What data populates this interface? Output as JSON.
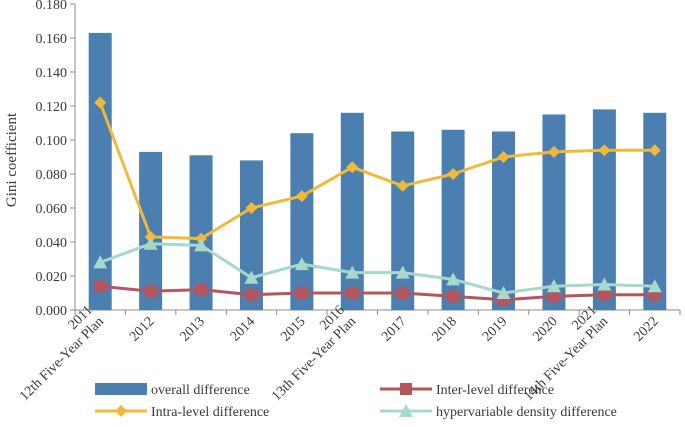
{
  "chart_data": {
    "type": "bar+line",
    "title": "",
    "xlabel": "",
    "ylabel": "Gini coefficient",
    "ylim": [
      0,
      0.18
    ],
    "yticks": [
      "0.000",
      "0.020",
      "0.040",
      "0.060",
      "0.080",
      "0.100",
      "0.120",
      "0.140",
      "0.160",
      "0.180"
    ],
    "categories": [
      [
        "2011",
        "12th Five-Year Plan"
      ],
      [
        "2012"
      ],
      [
        "2013"
      ],
      [
        "2014"
      ],
      [
        "2015"
      ],
      [
        "2016",
        "13th Five-Year Plan"
      ],
      [
        "2017"
      ],
      [
        "2018"
      ],
      [
        "2019"
      ],
      [
        "2020"
      ],
      [
        "2021",
        "14th Five-Year Plan"
      ],
      [
        "2022"
      ]
    ],
    "series": [
      {
        "name": "overall difference",
        "kind": "bar",
        "color": "#4a7fb0",
        "values": [
          0.163,
          0.093,
          0.091,
          0.088,
          0.104,
          0.116,
          0.105,
          0.106,
          0.105,
          0.115,
          0.118,
          0.116
        ]
      },
      {
        "name": "Inter-level difference",
        "kind": "line",
        "marker": "square",
        "color": "#b5555e",
        "values": [
          0.014,
          0.011,
          0.012,
          0.009,
          0.01,
          0.01,
          0.01,
          0.008,
          0.006,
          0.008,
          0.009,
          0.009
        ]
      },
      {
        "name": "Intra-level difference",
        "kind": "line",
        "marker": "diamond",
        "color": "#f0b93a",
        "values": [
          0.122,
          0.043,
          0.042,
          0.06,
          0.067,
          0.084,
          0.073,
          0.08,
          0.09,
          0.093,
          0.094,
          0.094
        ]
      },
      {
        "name": "hypervariable density difference",
        "kind": "line",
        "marker": "triangle",
        "color": "#a6d8cc",
        "values": [
          0.028,
          0.039,
          0.038,
          0.019,
          0.027,
          0.022,
          0.022,
          0.018,
          0.01,
          0.014,
          0.015,
          0.014
        ]
      }
    ],
    "legend_position": "bottom"
  }
}
